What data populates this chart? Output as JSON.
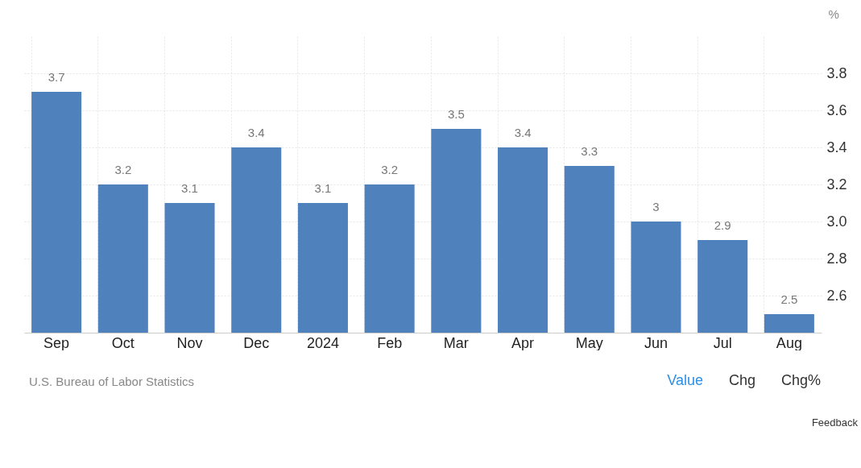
{
  "chart_data": {
    "type": "bar",
    "ylabel": "%",
    "categories": [
      "Sep",
      "Oct",
      "Nov",
      "Dec",
      "2024",
      "Feb",
      "Mar",
      "Apr",
      "May",
      "Jun",
      "Jul",
      "Aug"
    ],
    "values": [
      3.7,
      3.2,
      3.1,
      3.4,
      3.1,
      3.2,
      3.5,
      3.4,
      3.3,
      3.0,
      2.9,
      2.5
    ],
    "color": "#4f81bd",
    "data_labels": true,
    "grid": true,
    "ylim": [
      2.4,
      4.0
    ],
    "yticks": [
      2.6,
      2.8,
      {
        "value": 3,
        "label": "3.0"
      },
      3.2,
      3.4,
      3.6,
      3.8
    ],
    "annotations": [
      "U.S. Bureau of Labor Statistics",
      "Value",
      "Chg",
      "Chg%",
      "Feedback"
    ]
  }
}
